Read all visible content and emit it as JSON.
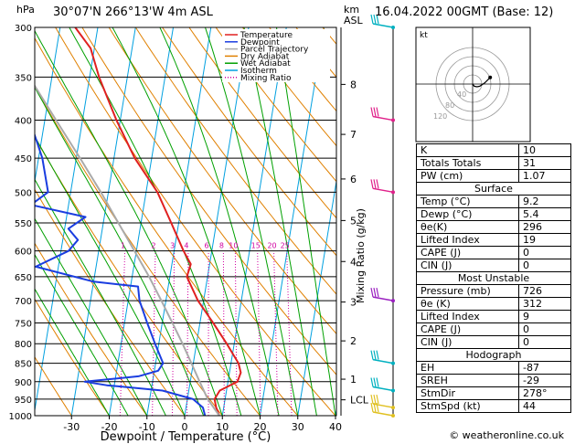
{
  "header": {
    "location": "30°07'N  266°13'W  4m  ASL",
    "datetime": "16.04.2022  00GMT  (Base: 12)",
    "hpa_label": "hPa",
    "km_label": "km",
    "asl_label": "ASL",
    "mixing_ratio_axis": "Mixing Ratio (g/kg)",
    "kt_label": "kt",
    "footer": "© weatheronline.co.uk"
  },
  "colors": {
    "temperature": "#e02020",
    "dewpoint": "#1a3de0",
    "parcel": "#aaaaaa",
    "dry_adiabat": "#e08000",
    "wet_adiabat": "#00a000",
    "isotherm": "#00a0e0",
    "mixing_ratio": "#d000a0"
  },
  "chart_data": {
    "type": "line",
    "title": "Skew-T log-P diagram",
    "xlabel": "Dewpoint / Temperature (°C)",
    "ylabel": "hPa",
    "x_ticks": [
      -30,
      -20,
      -10,
      0,
      10,
      20,
      30,
      40
    ],
    "pressure_levels": [
      300,
      350,
      400,
      450,
      500,
      550,
      600,
      650,
      700,
      750,
      800,
      850,
      900,
      950,
      1000
    ],
    "xlim": [
      -40,
      40
    ],
    "ylim": [
      1000,
      300
    ],
    "legend": [
      {
        "name": "Temperature",
        "color": "#e02020",
        "style": "solid"
      },
      {
        "name": "Dewpoint",
        "color": "#1a3de0",
        "style": "solid"
      },
      {
        "name": "Parcel Trajectory",
        "color": "#aaaaaa",
        "style": "solid"
      },
      {
        "name": "Dry Adiabat",
        "color": "#e08000",
        "style": "solid"
      },
      {
        "name": "Wet Adiabat",
        "color": "#00a000",
        "style": "solid"
      },
      {
        "name": "Isotherm",
        "color": "#00a0e0",
        "style": "solid"
      },
      {
        "name": "Mixing Ratio",
        "color": "#d000a0",
        "style": "dotted"
      }
    ],
    "km_levels": [
      {
        "km": "8",
        "p": 358
      },
      {
        "km": "7",
        "p": 418
      },
      {
        "km": "6",
        "p": 480
      },
      {
        "km": "5",
        "p": 546
      },
      {
        "km": "4",
        "p": 620
      },
      {
        "km": "3",
        "p": 703
      },
      {
        "km": "2",
        "p": 793
      },
      {
        "km": "1",
        "p": 893
      },
      {
        "km": "LCL",
        "p": 952
      }
    ],
    "mixing_ratio_labels": [
      "1",
      "2",
      "3",
      "4",
      "6",
      "8",
      "10",
      "15",
      "20",
      "25"
    ],
    "mixing_ratio_values": [
      1,
      2,
      3,
      4,
      6,
      8,
      10,
      15,
      20,
      25
    ],
    "series": [
      {
        "name": "Temperature",
        "points": [
          {
            "p": 1000,
            "t": 9.2
          },
          {
            "p": 975,
            "t": 8
          },
          {
            "p": 950,
            "t": 7.2
          },
          {
            "p": 925,
            "t": 8.2
          },
          {
            "p": 900,
            "t": 12.5
          },
          {
            "p": 875,
            "t": 13
          },
          {
            "p": 850,
            "t": 12
          },
          {
            "p": 800,
            "t": 8
          },
          {
            "p": 750,
            "t": 3.5
          },
          {
            "p": 700,
            "t": -1.5
          },
          {
            "p": 650,
            "t": -5.5
          },
          {
            "p": 625,
            "t": -5
          },
          {
            "p": 600,
            "t": -7.5
          },
          {
            "p": 550,
            "t": -12
          },
          {
            "p": 500,
            "t": -17
          },
          {
            "p": 450,
            "t": -24.5
          },
          {
            "p": 400,
            "t": -31
          },
          {
            "p": 350,
            "t": -37.5
          },
          {
            "p": 320,
            "t": -41
          },
          {
            "p": 300,
            "t": -46
          }
        ]
      },
      {
        "name": "Dewpoint",
        "points": [
          {
            "p": 1000,
            "t": 5.4
          },
          {
            "p": 975,
            "t": 4.5
          },
          {
            "p": 950,
            "t": 1.5
          },
          {
            "p": 925,
            "t": -7
          },
          {
            "p": 910,
            "t": -22
          },
          {
            "p": 900,
            "t": -28
          },
          {
            "p": 885,
            "t": -14
          },
          {
            "p": 870,
            "t": -9
          },
          {
            "p": 850,
            "t": -8
          },
          {
            "p": 800,
            "t": -11
          },
          {
            "p": 750,
            "t": -14
          },
          {
            "p": 700,
            "t": -17
          },
          {
            "p": 670,
            "t": -18
          },
          {
            "p": 660,
            "t": -30
          },
          {
            "p": 630,
            "t": -46
          },
          {
            "p": 600,
            "t": -38
          },
          {
            "p": 580,
            "t": -36
          },
          {
            "p": 560,
            "t": -39
          },
          {
            "p": 540,
            "t": -35
          },
          {
            "p": 520,
            "t": -50
          },
          {
            "p": 500,
            "t": -46
          },
          {
            "p": 450,
            "t": -49
          },
          {
            "p": 400,
            "t": -54
          },
          {
            "p": 370,
            "t": -58
          },
          {
            "p": 330,
            "t": -58
          },
          {
            "p": 300,
            "t": -62
          }
        ]
      },
      {
        "name": "Parcel Trajectory",
        "points": [
          {
            "p": 1000,
            "t": 9.2
          },
          {
            "p": 950,
            "t": 5.4
          },
          {
            "p": 900,
            "t": 2.5
          },
          {
            "p": 850,
            "t": -0.5
          },
          {
            "p": 800,
            "t": -3.7
          },
          {
            "p": 750,
            "t": -7.3
          },
          {
            "p": 700,
            "t": -11.2
          },
          {
            "p": 650,
            "t": -15.5
          },
          {
            "p": 600,
            "t": -20.5
          },
          {
            "p": 550,
            "t": -26
          },
          {
            "p": 500,
            "t": -32
          },
          {
            "p": 450,
            "t": -39
          },
          {
            "p": 400,
            "t": -47
          },
          {
            "p": 350,
            "t": -56
          },
          {
            "p": 300,
            "t": -66
          }
        ]
      }
    ]
  },
  "wind_barbs": [
    {
      "p": 300,
      "color": "#00b0c0"
    },
    {
      "p": 400,
      "color": "#e0208a"
    },
    {
      "p": 500,
      "color": "#e0208a"
    },
    {
      "p": 700,
      "color": "#9a20c0"
    },
    {
      "p": 850,
      "color": "#00b0c0"
    },
    {
      "p": 925,
      "color": "#00b0c0"
    },
    {
      "p": 975,
      "color": "#e0c020"
    },
    {
      "p": 1000,
      "color": "#e0c020"
    }
  ],
  "hodograph": {
    "rings": [
      "120",
      "80",
      "40"
    ],
    "points": [
      {
        "u": 0,
        "v": 0
      },
      {
        "u": 3,
        "v": -4
      },
      {
        "u": 8,
        "v": -5
      },
      {
        "u": 13,
        "v": -4
      },
      {
        "u": 22,
        "v": 2
      },
      {
        "u": 32,
        "v": 12
      }
    ]
  },
  "indices": {
    "basic": [
      {
        "label": "K",
        "value": "10"
      },
      {
        "label": "Totals Totals",
        "value": "31"
      },
      {
        "label": "PW (cm)",
        "value": "1.07"
      }
    ],
    "surface_title": "Surface",
    "surface": [
      {
        "label": "Temp (°C)",
        "value": "9.2"
      },
      {
        "label": "Dewp (°C)",
        "value": "5.4"
      },
      {
        "label": "θe(K)",
        "value": "296"
      },
      {
        "label": "Lifted Index",
        "value": "19"
      },
      {
        "label": "CAPE (J)",
        "value": "0"
      },
      {
        "label": "CIN (J)",
        "value": "0"
      }
    ],
    "unstable_title": "Most Unstable",
    "unstable": [
      {
        "label": "Pressure (mb)",
        "value": "726"
      },
      {
        "label": "θe (K)",
        "value": "312"
      },
      {
        "label": "Lifted Index",
        "value": "9"
      },
      {
        "label": "CAPE (J)",
        "value": "0"
      },
      {
        "label": "CIN (J)",
        "value": "0"
      }
    ],
    "hodograph_title": "Hodograph",
    "hodograph": [
      {
        "label": "EH",
        "value": "-87"
      },
      {
        "label": "SREH",
        "value": "-29"
      },
      {
        "label": "StmDir",
        "value": "278°"
      },
      {
        "label": "StmSpd (kt)",
        "value": "44"
      }
    ]
  }
}
